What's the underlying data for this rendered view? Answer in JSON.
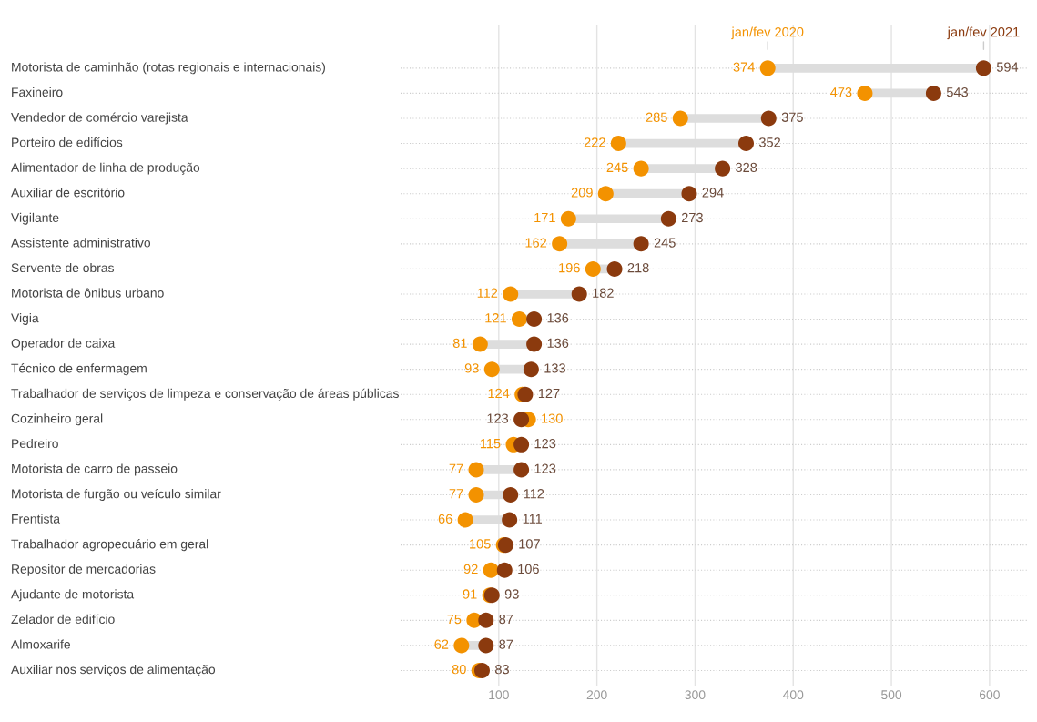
{
  "chart_data": {
    "type": "scatter",
    "orientation": "horizontal",
    "categories": [
      "Motorista de caminhão (rotas regionais e internacionais)",
      "Faxineiro",
      "Vendedor de comércio varejista",
      "Porteiro de edifícios",
      "Alimentador de linha de produção",
      "Auxiliar de escritório",
      "Vigilante",
      "Assistente administrativo",
      "Servente de obras",
      "Motorista de ônibus urbano",
      "Vigia",
      "Operador de caixa",
      "Técnico de enfermagem",
      "Trabalhador de serviços de limpeza e conservação de áreas públicas",
      "Cozinheiro geral",
      "Pedreiro",
      "Motorista de carro de passeio",
      "Motorista de furgão ou veículo similar",
      "Frentista",
      "Trabalhador agropecuário em geral",
      "Repositor de mercadorias",
      "Ajudante de motorista",
      "Zelador de edifício",
      "Almoxarife",
      "Auxiliar nos serviços de alimentação"
    ],
    "series": [
      {
        "name": "jan/fev 2020",
        "color": "#f39200",
        "values": [
          374,
          473,
          285,
          222,
          245,
          209,
          171,
          162,
          196,
          112,
          121,
          81,
          93,
          124,
          130,
          115,
          77,
          77,
          66,
          105,
          92,
          91,
          75,
          62,
          80
        ]
      },
      {
        "name": "jan/fev 2021",
        "color": "#8b3a0e",
        "values": [
          594,
          543,
          375,
          352,
          328,
          294,
          273,
          245,
          218,
          182,
          136,
          136,
          133,
          127,
          123,
          123,
          123,
          112,
          111,
          107,
          106,
          93,
          87,
          87,
          83
        ]
      }
    ],
    "xlim": [
      0,
      640
    ],
    "xticks": [
      100,
      200,
      300,
      400,
      500,
      600
    ],
    "grid": true,
    "legend": false,
    "data_labels": true,
    "marker": "circle"
  }
}
